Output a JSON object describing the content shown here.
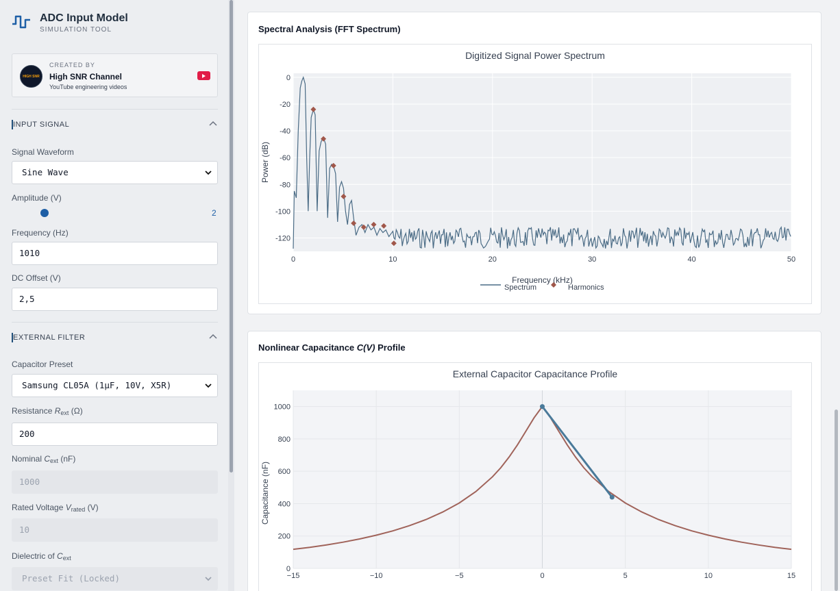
{
  "app": {
    "title": "ADC Input Model",
    "subtitle": "SIMULATION TOOL"
  },
  "creator": {
    "label": "CREATED BY",
    "name": "High SNR Channel",
    "description": "YouTube engineering videos",
    "avatar_text": "HIGH SNR"
  },
  "input_signal": {
    "section_title": "INPUT SIGNAL",
    "waveform_label": "Signal Waveform",
    "waveform_value": "Sine Wave",
    "amplitude_label": "Amplitude (V)",
    "amplitude_value": "2",
    "frequency_label": "Frequency (Hz)",
    "frequency_value": "1010",
    "dc_offset_label": "DC Offset (V)",
    "dc_offset_value": "2,5"
  },
  "external_filter": {
    "section_title": "EXTERNAL FILTER",
    "capacitor_preset_label": "Capacitor Preset",
    "capacitor_preset_value": "Samsung CL05A (1µF, 10V, X5R)",
    "resistance_label_pre": "Resistance ",
    "resistance_label_var": "R",
    "resistance_label_sub": "ext",
    "resistance_label_post": " (Ω)",
    "resistance_value": "200",
    "nominal_c_label_pre": "Nominal ",
    "nominal_c_label_var": "C",
    "nominal_c_label_sub": "ext",
    "nominal_c_label_post": " (nF)",
    "nominal_c_value": "1000",
    "rated_v_label_pre": "Rated Voltage ",
    "rated_v_label_var": "V",
    "rated_v_label_sub": "rated",
    "rated_v_label_post": " (V)",
    "rated_v_value": "10",
    "dielectric_label_pre": "Dielectric of ",
    "dielectric_label_var": "C",
    "dielectric_label_sub": "ext",
    "dielectric_value": "Preset Fit (Locked)"
  },
  "colors": {
    "accent": "#1e5fa6",
    "spectrum_line": "#4a6b85",
    "harmonic_marker": "#a0574a",
    "capacitance_curve": "#a0635a",
    "operating_segment": "#4a7a9a",
    "youtube": "#e11d48"
  },
  "spectral_card": {
    "title": "Spectral Analysis (FFT Spectrum)",
    "plot_title": "Digitized Signal Power Spectrum"
  },
  "capacitance_card": {
    "title_pre": "Nonlinear Capacitance ",
    "title_var": "C",
    "title_paren": "(V)",
    "title_post": " Profile",
    "plot_title": "External Capacitor Capacitance Profile"
  },
  "chart_data": [
    {
      "type": "line",
      "title": "Digitized Signal Power Spectrum",
      "xlabel": "Frequency (kHz)",
      "ylabel": "Power (dB)",
      "xlim": [
        0,
        50
      ],
      "ylim": [
        -130,
        3
      ],
      "x_ticks": [
        0,
        10,
        20,
        30,
        40,
        50
      ],
      "y_ticks": [
        0,
        -20,
        -40,
        -60,
        -80,
        -100,
        -120
      ],
      "grid": true,
      "legend_position": "bottom",
      "series": [
        {
          "name": "Spectrum",
          "x": [
            0,
            0.1,
            0.3,
            0.5,
            0.7,
            0.85,
            1.01,
            1.2,
            1.35,
            1.5,
            1.65,
            1.8,
            2.02,
            2.2,
            2.4,
            2.6,
            2.8,
            3.03,
            3.25,
            3.45,
            3.65,
            3.85,
            4.04,
            4.25,
            4.45,
            4.65,
            4.85,
            5.05,
            5.25,
            5.45,
            5.65,
            5.85,
            6.06,
            6.3,
            6.6,
            6.9,
            7.2,
            7.5,
            7.8,
            8.1,
            8.4,
            8.7,
            9.0,
            9.3,
            9.6,
            10.0
          ],
          "y": [
            -128,
            -85,
            -90,
            -40,
            -8,
            -3,
            0,
            -5,
            -60,
            -100,
            -60,
            -30,
            -24,
            -28,
            -100,
            -55,
            -48,
            -45,
            -50,
            -105,
            -68,
            -65,
            -66,
            -72,
            -108,
            -82,
            -78,
            -83,
            -100,
            -110,
            -95,
            -92,
            -105,
            -118,
            -112,
            -110,
            -116,
            -110,
            -114,
            -112,
            -118,
            -113,
            -116,
            -114,
            -119,
            -115
          ]
        },
        {
          "name": "Harmonics",
          "x": [
            2.02,
            3.03,
            4.04,
            5.05,
            6.06,
            7.07,
            8.08,
            9.09,
            10.1
          ],
          "y": [
            -24,
            -46,
            -66,
            -89,
            -109,
            -112,
            -110,
            -111,
            -124
          ]
        }
      ]
    },
    {
      "type": "line",
      "title": "External Capacitor Capacitance Profile",
      "xlabel": "",
      "ylabel": "Capacitance (nF)",
      "xlim": [
        -15,
        15
      ],
      "ylim": [
        0,
        1100
      ],
      "x_ticks": [
        -15,
        -10,
        -5,
        0,
        5,
        10,
        15
      ],
      "y_ticks": [
        0,
        200,
        400,
        600,
        800,
        1000
      ],
      "grid": true,
      "series": [
        {
          "name": "",
          "x": [
            -15,
            -14,
            -13,
            -12,
            -11,
            -10,
            -9,
            -8,
            -7,
            -6,
            -5,
            -4,
            -3,
            -2.5,
            -2,
            -1.5,
            -1,
            -0.5,
            0,
            0.5,
            1,
            1.5,
            2,
            2.5,
            3,
            4,
            5,
            6,
            7,
            8,
            9,
            10,
            11,
            12,
            13,
            14,
            15
          ],
          "y": [
            118,
            130,
            145,
            162,
            182,
            205,
            232,
            264,
            302,
            348,
            404,
            475,
            566,
            622,
            688,
            763,
            846,
            930,
            1000,
            930,
            846,
            763,
            688,
            622,
            566,
            475,
            404,
            348,
            302,
            264,
            232,
            205,
            182,
            162,
            145,
            130,
            118
          ]
        },
        {
          "name": "",
          "x": [
            0,
            4.2
          ],
          "y": [
            1000,
            440
          ]
        }
      ]
    }
  ]
}
